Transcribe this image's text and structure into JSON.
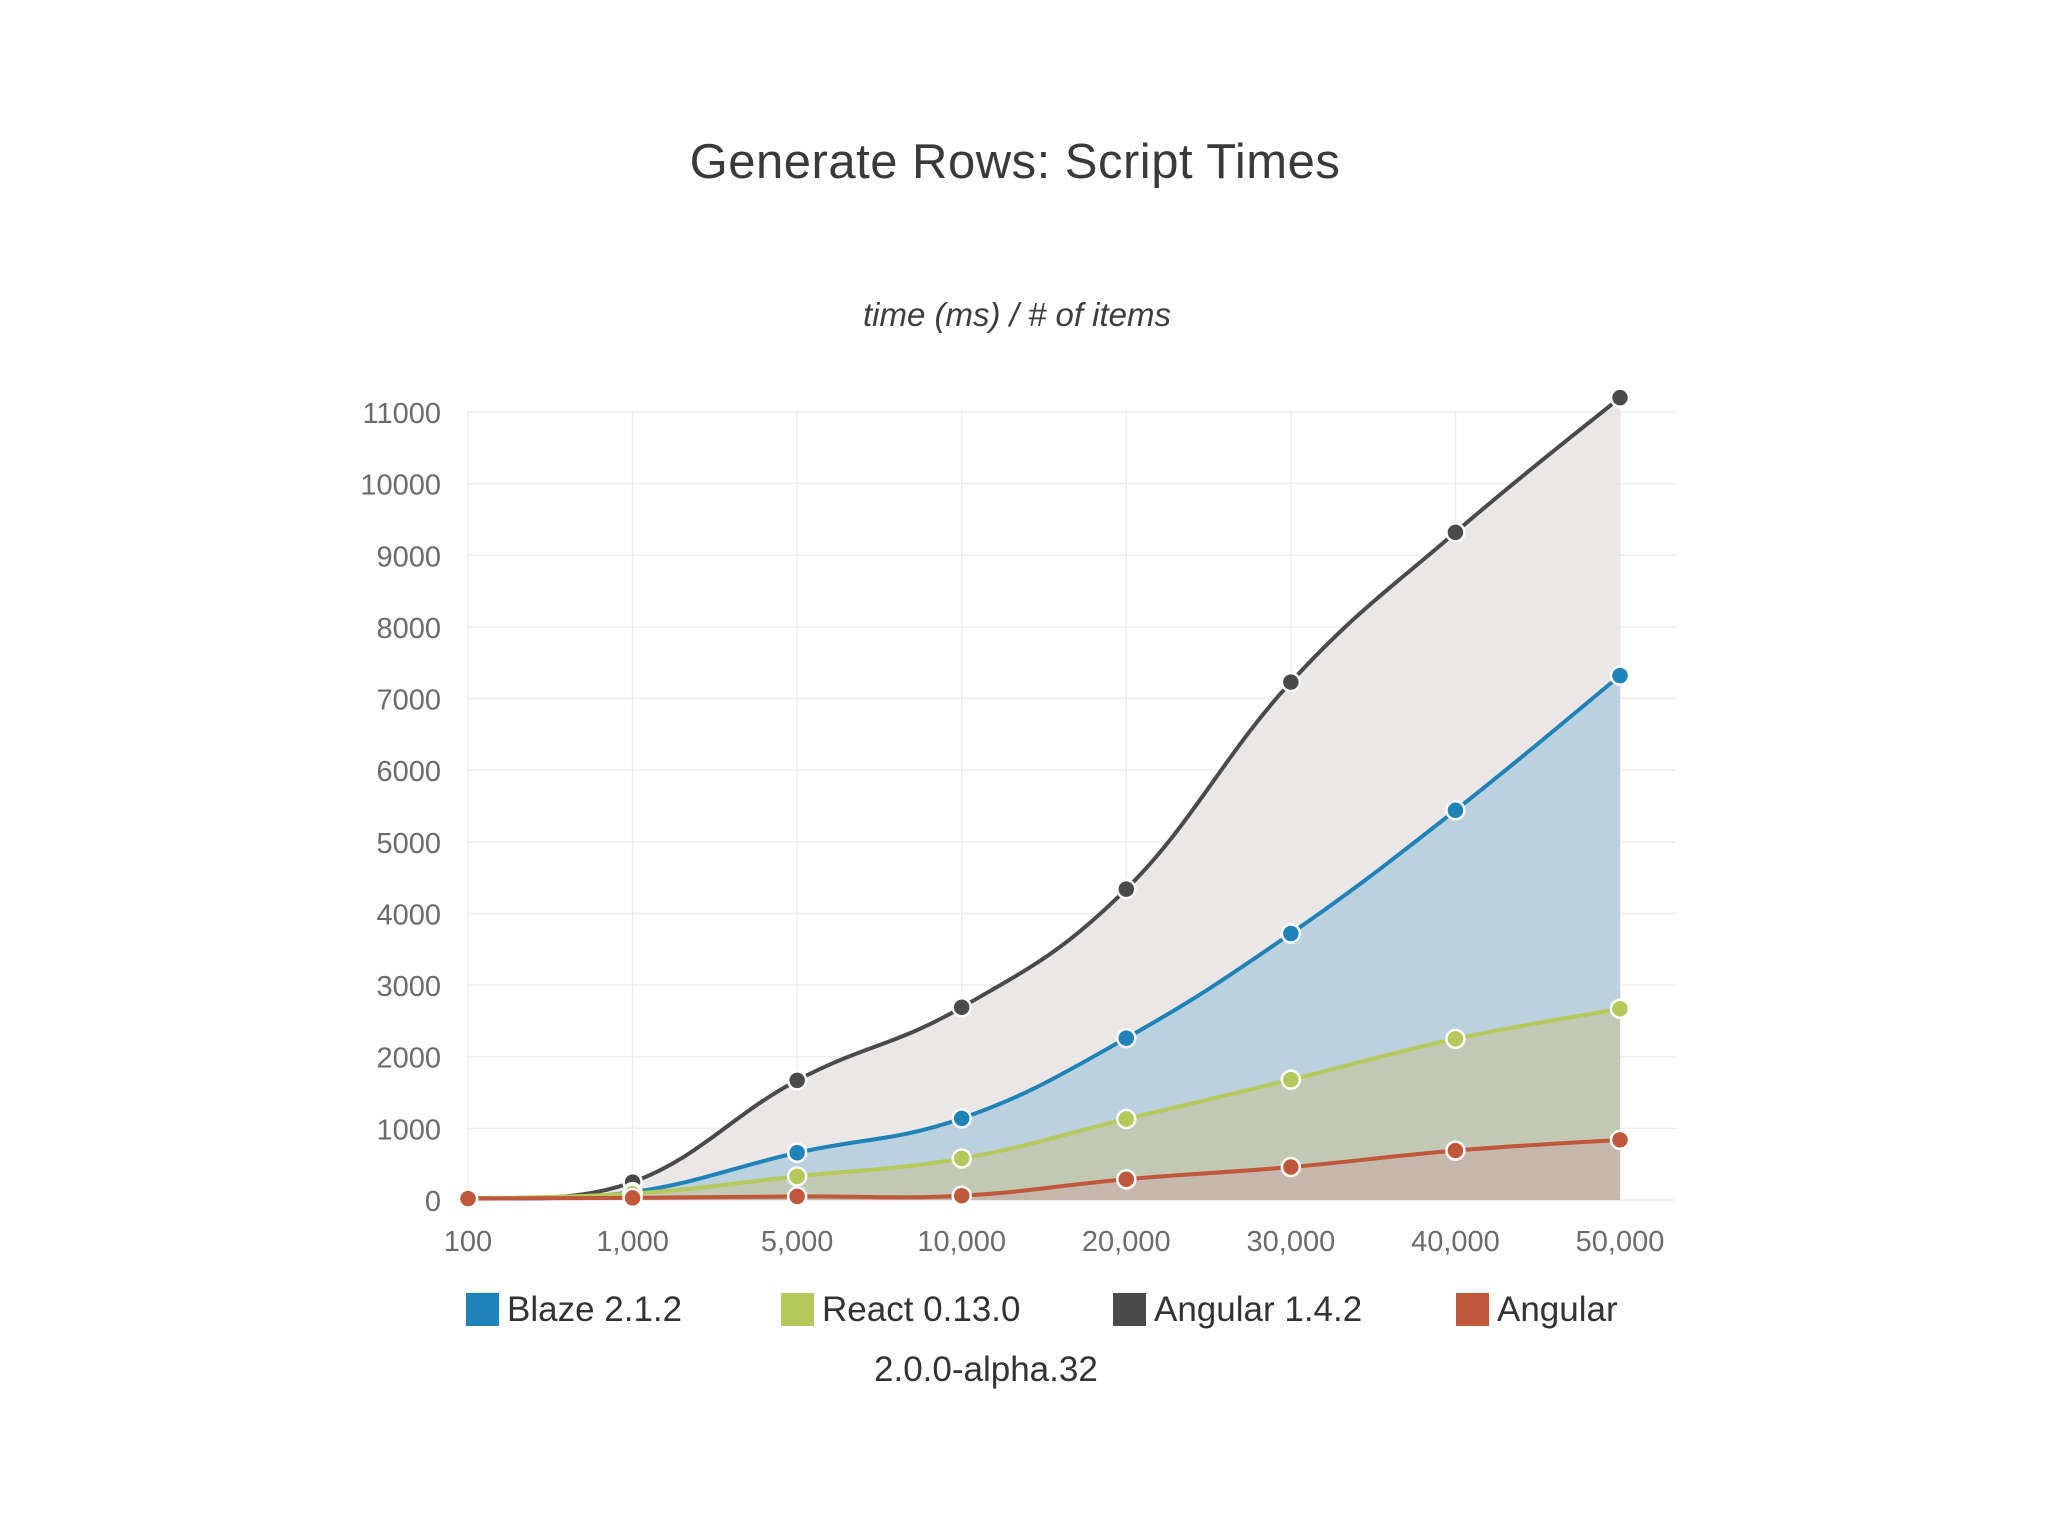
{
  "chart_data": {
    "type": "area",
    "title": "Generate Rows: Script Times",
    "subtitle": "time (ms) / # of items",
    "xlabel": "",
    "ylabel": "",
    "categories": [
      "100",
      "1,000",
      "5,000",
      "10,000",
      "20,000",
      "30,000",
      "40,000",
      "50,000"
    ],
    "y_ticks": [
      0,
      1000,
      2000,
      3000,
      4000,
      5000,
      6000,
      7000,
      8000,
      9000,
      10000,
      11000
    ],
    "ylim": [
      0,
      11000
    ],
    "grid": true,
    "legend_position": "bottom",
    "series": [
      {
        "name": "Angular 1.4.2",
        "color": "#4a4a4a",
        "fill": "#e8e3e3",
        "values": [
          20,
          250,
          1670,
          2690,
          4340,
          7230,
          9320,
          11200
        ]
      },
      {
        "name": "Blaze 2.1.2",
        "color": "#1f82b8",
        "fill": "#b3cddb",
        "values": [
          20,
          110,
          660,
          1140,
          2260,
          3720,
          5440,
          7320
        ]
      },
      {
        "name": "React 0.13.0",
        "color": "#b5c85a",
        "fill": "#c2c7ac",
        "values": [
          20,
          90,
          330,
          580,
          1130,
          1680,
          2250,
          2670
        ]
      },
      {
        "name": "Angular 2.0.0-alpha.32",
        "color": "#c0573a",
        "fill": "#c7b4ab",
        "values": [
          20,
          30,
          50,
          60,
          290,
          460,
          690,
          840
        ]
      }
    ]
  },
  "legend": {
    "items": [
      {
        "label": "Blaze 2.1.2",
        "color": "#1f82b8"
      },
      {
        "label": "React 0.13.0",
        "color": "#b5c85a"
      },
      {
        "label": "Angular 1.4.2",
        "color": "#4a4a4a"
      },
      {
        "label": "Angular",
        "color": "#c0573a"
      }
    ],
    "continuation": "2.0.0-alpha.32"
  }
}
